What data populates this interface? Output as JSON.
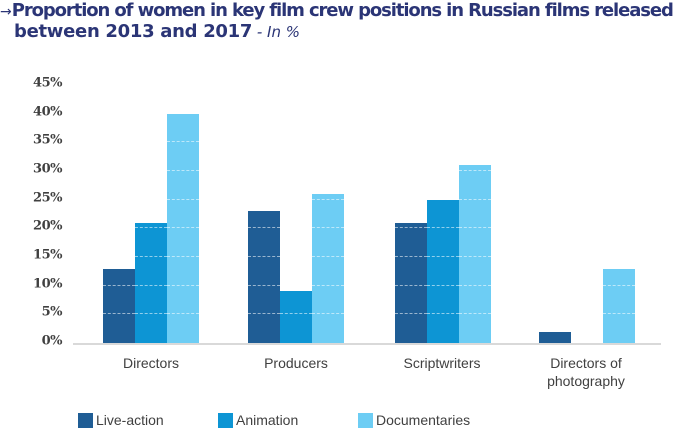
{
  "title": {
    "arrow": "→",
    "line1": "Proportion of women in key film crew positions in Russian films released",
    "line2": "between 2013 and 2017",
    "unit": " - In %"
  },
  "colors": {
    "live_action": "#1f5d95",
    "animation": "#0d95d4",
    "documentaries": "#6dcdf4",
    "title": "#2b3576",
    "baseline": "#d9d9d9"
  },
  "y_ticks": [
    "45%",
    "40%",
    "35%",
    "30%",
    "25%",
    "20%",
    "15%",
    "10%",
    "5%",
    "0%"
  ],
  "x_labels": [
    "Directors",
    "Producers",
    "Scriptwriters",
    "Directors of photography"
  ],
  "legend": [
    "Live-action",
    "Animation",
    "Documentaries"
  ],
  "chart_data": {
    "type": "bar",
    "title": "Proportion of women in key film crew positions in Russian films released between 2013 and 2017 - In %",
    "xlabel": "",
    "ylabel": "",
    "ylim": [
      0,
      45
    ],
    "y_ticks": [
      0,
      5,
      10,
      15,
      20,
      25,
      30,
      35,
      40,
      45
    ],
    "grid": "dashed white lines visible inside bars only",
    "legend_position": "bottom",
    "categories": [
      "Directors",
      "Producers",
      "Scriptwriters",
      "Directors of photography"
    ],
    "series": [
      {
        "name": "Live-action",
        "color": "#1f5d95",
        "values": [
          13,
          23,
          21,
          2
        ]
      },
      {
        "name": "Animation",
        "color": "#0d95d4",
        "values": [
          21,
          9,
          25,
          0
        ]
      },
      {
        "name": "Documentaries",
        "color": "#6dcdf4",
        "values": [
          40,
          26,
          31,
          13
        ]
      }
    ]
  }
}
